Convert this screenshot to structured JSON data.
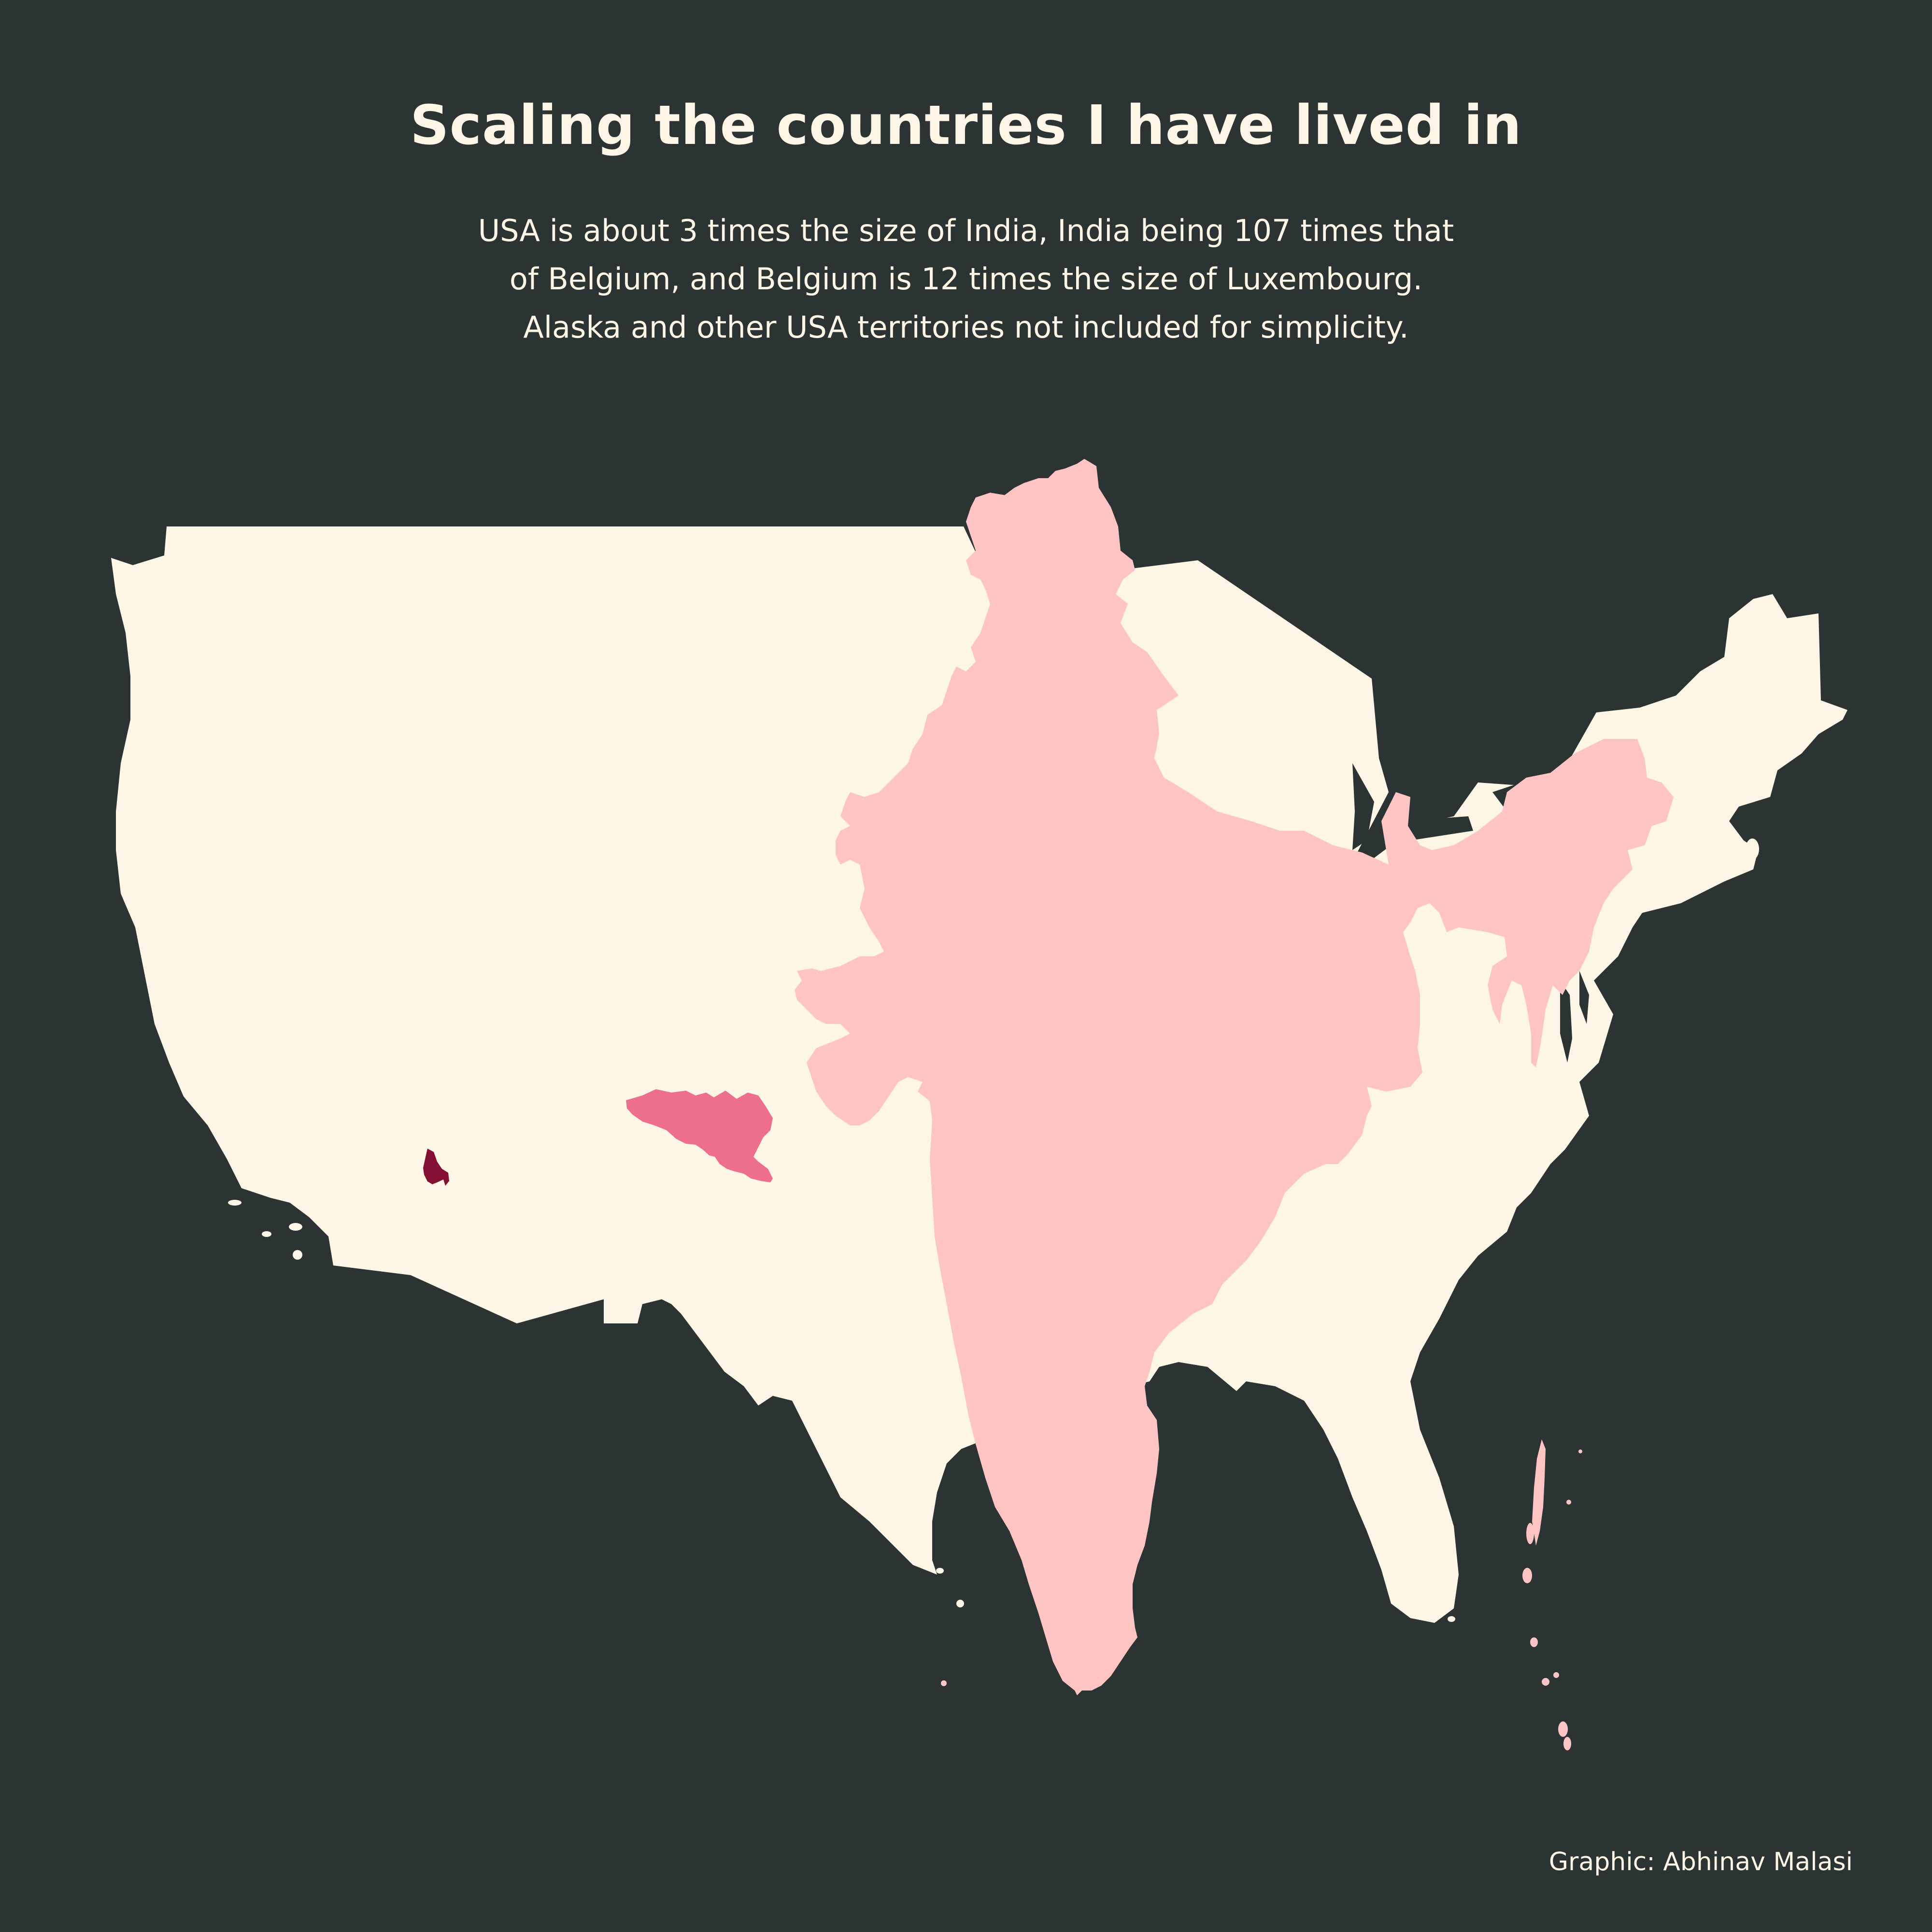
{
  "title": "Scaling the countries I have lived in",
  "subtitle": {
    "lines": [
      "USA is about 3 times the size of India, India being 107 times that",
      "of Belgium, and Belgium is 12 times the size of Luxembourg.",
      "Alaska and other USA territories not included for simplicity."
    ]
  },
  "credit": "Graphic: Abhinav Malasi",
  "colors": {
    "background": "#2c3333",
    "usa": "#fdf6e6",
    "india": "#ffc4c4",
    "belgium": "#ee6f8a",
    "luxembourg": "#850e35",
    "text": "#fdf6e6"
  },
  "map": {
    "countries": [
      "usa",
      "india",
      "belgium",
      "luxembourg"
    ]
  }
}
